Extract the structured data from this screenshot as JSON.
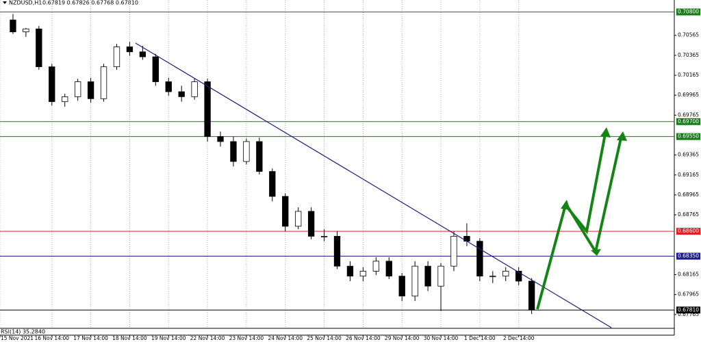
{
  "chart_data": {
    "type": "candlestick",
    "title": "NZDUSD,H1",
    "subtitle": "0.67819 0.67826 0.67768 0.67810",
    "x": [
      0,
      1,
      2,
      3,
      4,
      5,
      6,
      7,
      8,
      9,
      10,
      11,
      12,
      13,
      14,
      15,
      16,
      17,
      18,
      19,
      20,
      21,
      22,
      23,
      24,
      25,
      26,
      27,
      28,
      29,
      30,
      31,
      32,
      33,
      34,
      35,
      36,
      37,
      38,
      39,
      40
    ],
    "open": [
      0.7072,
      0.706,
      0.7063,
      0.7025,
      0.699,
      0.6995,
      0.701,
      0.6993,
      0.7025,
      0.7045,
      0.704,
      0.7035,
      0.701,
      0.7,
      0.6995,
      0.701,
      0.6955,
      0.695,
      0.693,
      0.695,
      0.692,
      0.6895,
      0.6865,
      0.688,
      0.6855,
      0.6855,
      0.6825,
      0.6815,
      0.682,
      0.683,
      0.6815,
      0.6795,
      0.6825,
      0.6805,
      0.6825,
      0.6855,
      0.685,
      0.6815,
      0.6815,
      0.682,
      0.681
    ],
    "high": [
      0.7078,
      0.7064,
      0.7066,
      0.7028,
      0.6998,
      0.7013,
      0.7014,
      0.7028,
      0.7048,
      0.705,
      0.7046,
      0.7038,
      0.7014,
      0.7006,
      0.7013,
      0.7013,
      0.696,
      0.6955,
      0.6953,
      0.6954,
      0.6923,
      0.6898,
      0.6884,
      0.6884,
      0.6862,
      0.686,
      0.683,
      0.6824,
      0.6834,
      0.6834,
      0.6818,
      0.683,
      0.683,
      0.6828,
      0.686,
      0.6868,
      0.6853,
      0.682,
      0.6824,
      0.6824,
      0.6813
    ],
    "low": [
      0.7058,
      0.7055,
      0.7022,
      0.6986,
      0.6985,
      0.6991,
      0.6989,
      0.699,
      0.7022,
      0.7036,
      0.7032,
      0.7006,
      0.6996,
      0.699,
      0.6992,
      0.695,
      0.6945,
      0.6925,
      0.6927,
      0.6917,
      0.689,
      0.686,
      0.6862,
      0.6852,
      0.685,
      0.6822,
      0.681,
      0.681,
      0.6816,
      0.6812,
      0.679,
      0.679,
      0.68,
      0.678,
      0.682,
      0.6845,
      0.681,
      0.6808,
      0.681,
      0.6806,
      0.6777
    ],
    "close": [
      0.706,
      0.7063,
      0.7025,
      0.699,
      0.6995,
      0.701,
      0.6993,
      0.7025,
      0.7045,
      0.704,
      0.7035,
      0.701,
      0.7,
      0.6995,
      0.701,
      0.6955,
      0.695,
      0.693,
      0.695,
      0.692,
      0.6895,
      0.6865,
      0.688,
      0.6855,
      0.6855,
      0.6825,
      0.6815,
      0.682,
      0.683,
      0.6815,
      0.6795,
      0.6825,
      0.6805,
      0.6825,
      0.6855,
      0.685,
      0.6815,
      0.6815,
      0.682,
      0.681,
      0.6781
    ],
    "xlim": [
      -1,
      51
    ],
    "ylim": [
      0.6775,
      0.7092
    ],
    "xticks": [
      {
        "value": -1,
        "label": "15 Nov 2021"
      },
      {
        "value": 3,
        "label": "16 Nov 14:00"
      },
      {
        "value": 6,
        "label": "17 Nov 14:00"
      },
      {
        "value": 9,
        "label": "18 Nov 14:00"
      },
      {
        "value": 12,
        "label": "19 Nov 14:00"
      },
      {
        "value": 15,
        "label": "22 Nov 14:00"
      },
      {
        "value": 18,
        "label": "23 Nov 14:00"
      },
      {
        "value": 21,
        "label": "24 Nov 14:00"
      },
      {
        "value": 24,
        "label": "25 Nov 14:00"
      },
      {
        "value": 27,
        "label": "26 Nov 14:00"
      },
      {
        "value": 30,
        "label": "29 Nov 14:00"
      },
      {
        "value": 33,
        "label": "30 Nov 14:00"
      },
      {
        "value": 36,
        "label": "1 Dec 14:00"
      },
      {
        "value": 39,
        "label": "2 Dec 14:00"
      }
    ],
    "yticks": [
      0.70565,
      0.70365,
      0.70165,
      0.69965,
      0.69765,
      0.69365,
      0.69165,
      0.68965,
      0.68765,
      0.68165,
      0.67965,
      0.67765
    ],
    "levels": [
      {
        "value": 0.708,
        "label": "0.70800",
        "color": "#1a7a1a"
      },
      {
        "value": 0.697,
        "label": "0.69700",
        "color": "#1a7a1a"
      },
      {
        "value": 0.6955,
        "label": "0.69550",
        "color": "#1a7a1a"
      },
      {
        "value": 0.686,
        "label": "0.68600",
        "color": "#e02020"
      },
      {
        "value": 0.6835,
        "label": "0.68350",
        "color": "#1c1c80"
      },
      {
        "value": 0.6781,
        "label": "0.67810",
        "color": "#000000"
      }
    ],
    "trendline": {
      "x": [
        9.45,
        46.15
      ],
      "y": [
        0.70488,
        0.67633
      ],
      "color": "#1c1c80"
    },
    "indicator": "RSI(14) 35.2840"
  }
}
